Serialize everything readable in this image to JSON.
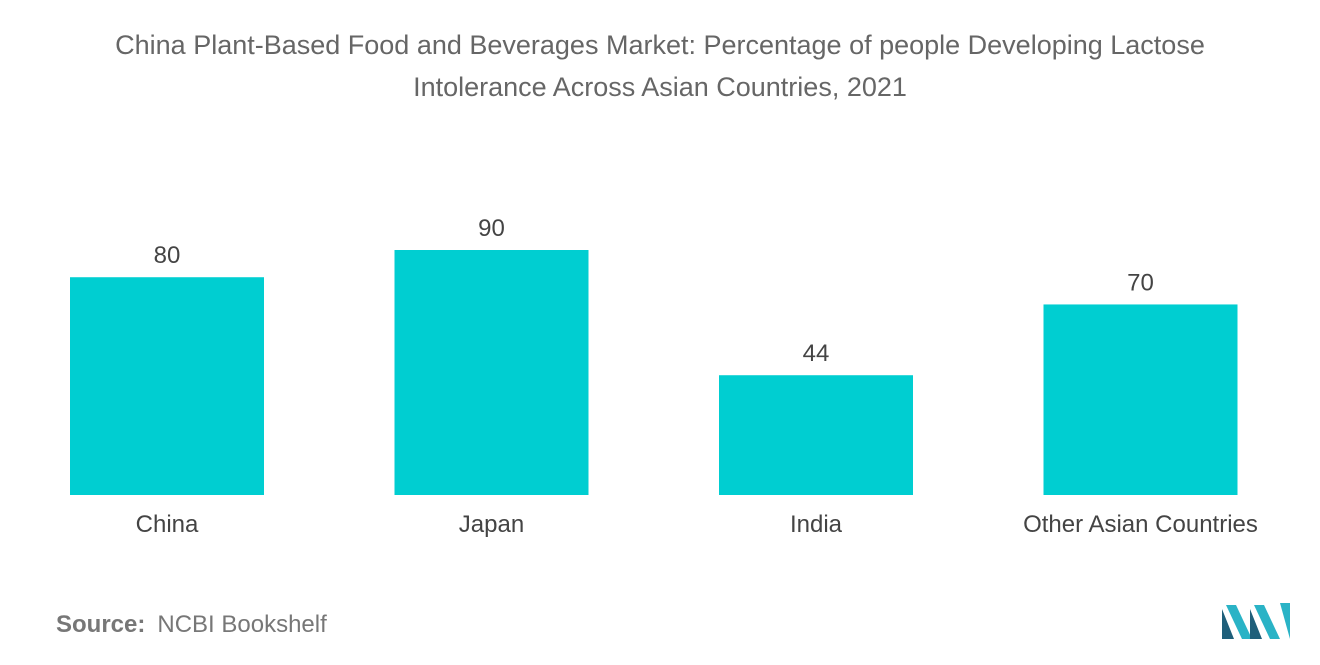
{
  "title_line1": "China Plant-Based Food and Beverages Market: Percentage of people Developing Lactose",
  "title_line2": "Intolerance Across Asian Countries, 2021",
  "source": {
    "label": "Source:",
    "value": "NCBI Bookshelf"
  },
  "colors": {
    "bar": "#00CED1",
    "logo_dark": "#1f5f7a",
    "logo_light": "#2ab3c6"
  },
  "logo_icon": "mordor-intelligence-logo-icon",
  "chart_data": {
    "type": "bar",
    "title": "China Plant-Based Food and Beverages Market: Percentage of people Developing Lactose Intolerance Across Asian Countries, 2021",
    "categories": [
      "China",
      "Japan",
      "India",
      "Other Asian Countries"
    ],
    "values": [
      80,
      90,
      44,
      70
    ],
    "xlabel": "",
    "ylabel": "",
    "ylim": [
      0,
      90
    ],
    "grid": false,
    "data_labels": true
  }
}
